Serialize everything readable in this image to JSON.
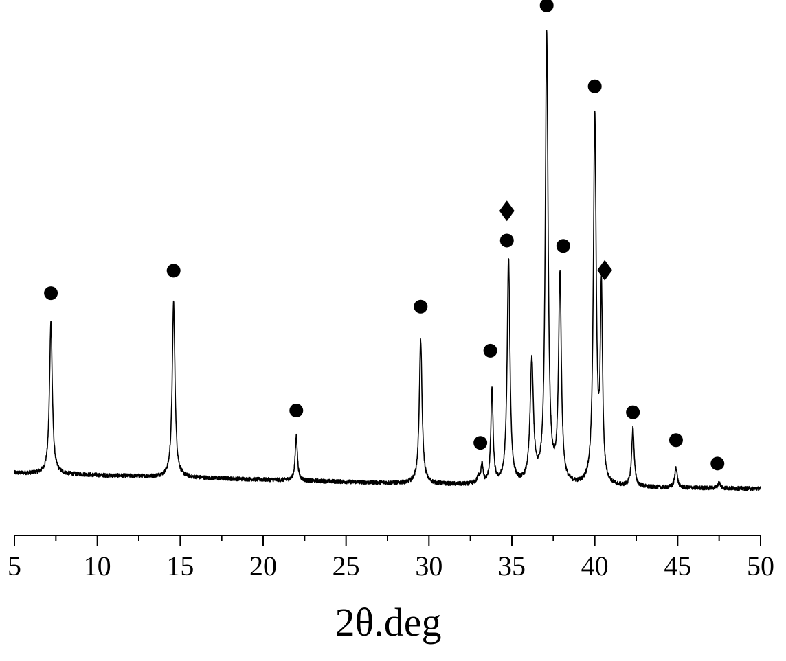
{
  "chart_data": {
    "type": "line",
    "title": "",
    "xlabel": "2θ.deg",
    "ylabel": "",
    "xlim": [
      5,
      50
    ],
    "x_ticks": [
      5,
      10,
      15,
      20,
      25,
      30,
      35,
      40,
      45,
      50
    ],
    "x_tick_labels": [
      "5",
      "10",
      "15",
      "20",
      "25",
      "30",
      "35",
      "40",
      "45",
      "50"
    ],
    "y_axis_shown": false,
    "grid": false,
    "legend": "none",
    "line_color": "#000000",
    "baseline": [
      {
        "x": 5.0,
        "y": 3.5
      },
      {
        "x": 10.0,
        "y": 3.0
      },
      {
        "x": 20.0,
        "y": 2.0
      },
      {
        "x": 30.0,
        "y": 1.0
      },
      {
        "x": 40.0,
        "y": 0.3
      },
      {
        "x": 50.0,
        "y": 0.0
      }
    ],
    "peaks": [
      {
        "x": 7.2,
        "height": 34,
        "width": 0.1
      },
      {
        "x": 14.6,
        "height": 39,
        "width": 0.1
      },
      {
        "x": 22.0,
        "height": 10,
        "width": 0.08
      },
      {
        "x": 29.5,
        "height": 32,
        "width": 0.1
      },
      {
        "x": 33.0,
        "height": 1.5,
        "width": 0.12
      },
      {
        "x": 33.2,
        "height": 4.0,
        "width": 0.07
      },
      {
        "x": 33.8,
        "height": 21,
        "width": 0.08
      },
      {
        "x": 34.8,
        "height": 50,
        "width": 0.1
      },
      {
        "x": 36.2,
        "height": 27,
        "width": 0.12
      },
      {
        "x": 37.1,
        "height": 100,
        "width": 0.1
      },
      {
        "x": 37.9,
        "height": 46,
        "width": 0.1
      },
      {
        "x": 40.0,
        "height": 82,
        "width": 0.1
      },
      {
        "x": 40.4,
        "height": 42,
        "width": 0.08
      },
      {
        "x": 42.3,
        "height": 13,
        "width": 0.09
      },
      {
        "x": 44.9,
        "height": 4.5,
        "width": 0.09
      },
      {
        "x": 47.5,
        "height": 1.2,
        "width": 0.1
      }
    ],
    "noise_amplitude": 0.45,
    "markers": [
      {
        "shape": "circle",
        "x": 7.2,
        "y": 43.5
      },
      {
        "shape": "circle",
        "x": 14.6,
        "y": 48.5
      },
      {
        "shape": "circle",
        "x": 22.0,
        "y": 17.4
      },
      {
        "shape": "circle",
        "x": 29.5,
        "y": 40.5
      },
      {
        "shape": "circle",
        "x": 33.1,
        "y": 10.2
      },
      {
        "shape": "circle",
        "x": 33.7,
        "y": 30.7
      },
      {
        "shape": "circle",
        "x": 34.7,
        "y": 55.2
      },
      {
        "shape": "diamond",
        "x": 34.7,
        "y": 61.8
      },
      {
        "shape": "circle",
        "x": 37.1,
        "y": 107.5
      },
      {
        "shape": "circle",
        "x": 38.1,
        "y": 54.0
      },
      {
        "shape": "circle",
        "x": 40.0,
        "y": 89.5
      },
      {
        "shape": "diamond",
        "x": 40.6,
        "y": 48.6
      },
      {
        "shape": "circle",
        "x": 42.3,
        "y": 17.0
      },
      {
        "shape": "circle",
        "x": 44.9,
        "y": 10.8
      },
      {
        "shape": "circle",
        "x": 47.4,
        "y": 5.6
      }
    ]
  }
}
